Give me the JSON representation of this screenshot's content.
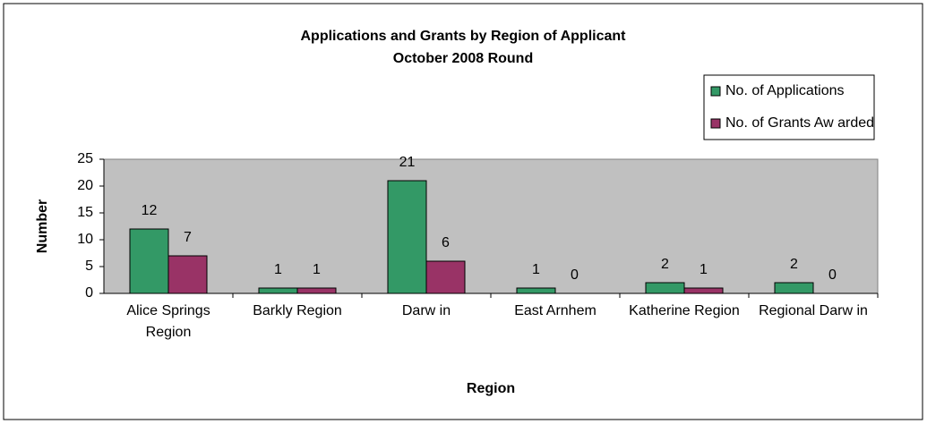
{
  "chart_data": {
    "type": "bar",
    "title": "Applications and Grants by Region of Applicant",
    "subtitle": "October 2008 Round",
    "x_label": "Region",
    "y_label": "Number",
    "categories": [
      "Alice Springs Region",
      "Barkly Region",
      "Darw in",
      "East Arnhem",
      "Katherine Region",
      "Regional Darw in"
    ],
    "series": [
      {
        "name": "No. of Applications",
        "color": "#339966",
        "values": [
          12,
          1,
          21,
          1,
          2,
          2
        ]
      },
      {
        "name": "No. of Grants Aw arded",
        "color": "#993366",
        "values": [
          7,
          1,
          6,
          0,
          1,
          0
        ]
      }
    ],
    "ylim": [
      0,
      25
    ],
    "yticks": [
      0,
      5,
      10,
      15,
      20,
      25
    ],
    "grid": false,
    "legend": "upper right",
    "plot_background": "#c0c0c0"
  }
}
